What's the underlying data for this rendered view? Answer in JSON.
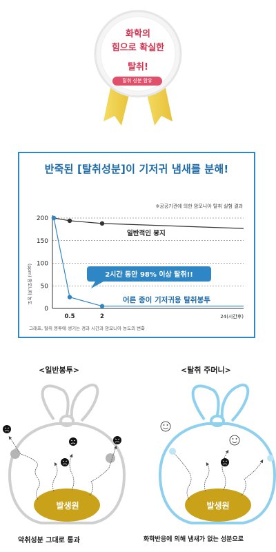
{
  "badge": {
    "line1": "화학의",
    "line2": "힘으로 확실한",
    "line3": "탈취!",
    "subtitle": "탈취 성분 함유",
    "colors": {
      "ribbon": "#f1d44a",
      "text": "#d2344f"
    }
  },
  "chart_box": {
    "title": "반죽된 [탈취성분]이 기저귀 냄새를 분해!",
    "note": "※공공기관에 의한 암모니아 탈취 실험 결과",
    "caption": "그래프, 탈취 봉투에 생기는 경과 시간과 암모니아 농도의 변화",
    "callout": "2시간 동안 98% 이상 탈취!!",
    "accent_color": "#2f86c4"
  },
  "chart_data": {
    "type": "line",
    "ylabel": "(ppm)",
    "ylabel_rotated": "암모니아 농도",
    "xlabel": "24(시간후)",
    "x_tick_labels": [
      "0.5",
      "2"
    ],
    "y_ticks": [
      0,
      50,
      100,
      150,
      200
    ],
    "ylim": [
      0,
      200
    ],
    "grid": "horizontal dashed",
    "series": [
      {
        "name": "일반적인 봉지",
        "color": "#333333",
        "points": [
          {
            "x": 0,
            "y": 200
          },
          {
            "x": 0.5,
            "y": 194
          },
          {
            "x": 2,
            "y": 188
          },
          {
            "x": 24,
            "y": 177
          }
        ]
      },
      {
        "name": "어른 종이 기저귀용 탈취봉투",
        "color": "#2f86c4",
        "points": [
          {
            "x": 0,
            "y": 200
          },
          {
            "x": 0.5,
            "y": 25
          },
          {
            "x": 2,
            "y": 5
          },
          {
            "x": 24,
            "y": 5
          }
        ]
      }
    ]
  },
  "bags": {
    "left": {
      "title": "<일반봉투>",
      "source_label": "발생원",
      "caption": "악취성분 그대로 통과",
      "outline_color": "#c8c8c8"
    },
    "right": {
      "title": "<탈취 주머니>",
      "source_label": "발생원",
      "caption": "화학반응에 의해 냄새가 없는 성분으로",
      "outline_color": "#8fd0ee"
    },
    "source_color": "#c9a21a"
  }
}
